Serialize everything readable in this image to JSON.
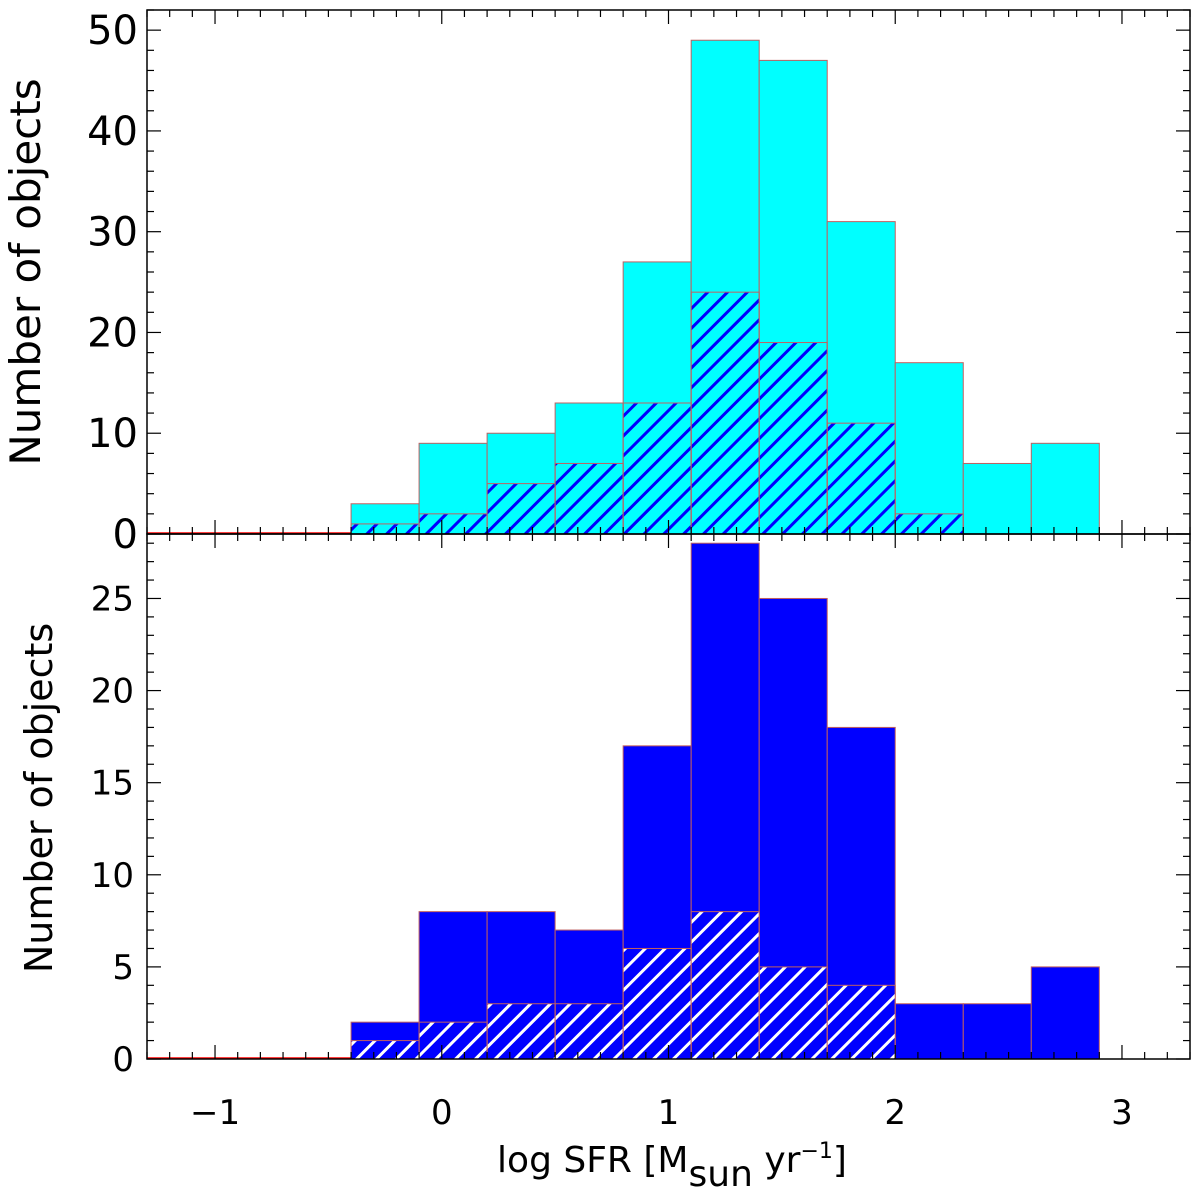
{
  "chart_data": {
    "type": "bar",
    "shared_x": {
      "xlabel": {
        "main": "log SFR [M",
        "sub": "sun",
        "mid": " yr",
        "sup": "−1",
        "end": "]"
      },
      "xlim": [
        -1.3,
        3.3
      ],
      "ticks": [
        -1,
        0,
        1,
        2,
        3
      ],
      "tick_labels": [
        "−1",
        "0",
        "1",
        "2",
        "3"
      ],
      "bin_edges": [
        -1.6,
        -1.3,
        -1.0,
        -0.7,
        -0.4,
        -0.1,
        0.2,
        0.5,
        0.8,
        1.1,
        1.4,
        1.7,
        2.0,
        2.3,
        2.6,
        2.9
      ]
    },
    "panels": [
      {
        "id": "top",
        "ylabel": "Number of objects",
        "ylim": [
          0,
          52
        ],
        "yticks": [
          0,
          10,
          20,
          30,
          40,
          50
        ],
        "series": [
          {
            "name": "total",
            "style": "filled",
            "color": "#00ffff",
            "values": [
              0,
              0,
              0,
              0,
              3,
              9,
              10,
              13,
              27,
              49,
              47,
              31,
              17,
              7,
              9
            ]
          },
          {
            "name": "subset",
            "style": "hatched",
            "color": "#0000ff",
            "values": [
              0,
              0,
              0,
              0,
              1,
              2,
              5,
              7,
              13,
              24,
              19,
              11,
              2,
              0,
              0
            ]
          }
        ]
      },
      {
        "id": "bottom",
        "ylabel": "Number of objects",
        "ylim": [
          0,
          28.5
        ],
        "yticks": [
          0,
          5,
          10,
          15,
          20,
          25
        ],
        "series": [
          {
            "name": "total",
            "style": "filled",
            "color": "#0000ff",
            "values": [
              0,
              0,
              0,
              0,
              2,
              8,
              8,
              7,
              17,
              28,
              25,
              18,
              3,
              3,
              5
            ]
          },
          {
            "name": "subset",
            "style": "hatched",
            "color": "#ffffff",
            "values": [
              0,
              0,
              0,
              0,
              1,
              2,
              3,
              3,
              6,
              8,
              5,
              4,
              0,
              0,
              0
            ]
          }
        ]
      }
    ],
    "colors": {
      "baseline": "#ff0000",
      "bar_edge": "#c06060",
      "axis": "#000000"
    }
  }
}
